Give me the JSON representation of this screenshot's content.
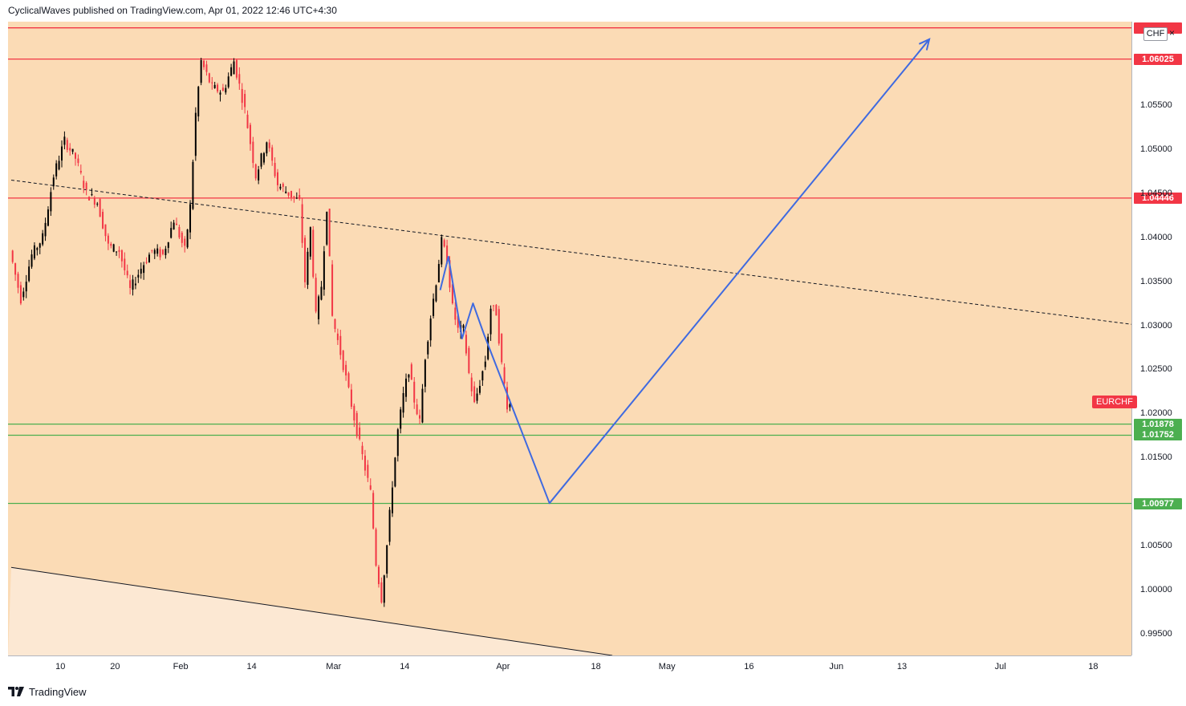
{
  "header": {
    "published_line": "CyclicalWaves published on TradingView.com, Apr 01, 2022 12:46 UTC+4:30"
  },
  "footer": {
    "brand": "TradingView"
  },
  "price_axis": {
    "currency_badge": "CHF",
    "close_symbol": "×",
    "symbol_label": "EURCHF"
  },
  "colors": {
    "background": "#fbdbb5",
    "resistance": "#f23645",
    "support": "#4caf50",
    "projection": "#3f6ae0",
    "candle_up": "#000000",
    "candle_down": "#f23645"
  },
  "chart_data": {
    "type": "candlestick",
    "symbol": "EURCHF",
    "ylim": [
      0.9925,
      1.0645
    ],
    "y_ticks": [
      "0.99500",
      "1.00000",
      "1.00500",
      "1.01500",
      "1.02000",
      "1.02500",
      "1.03000",
      "1.03500",
      "1.04000",
      "1.04500",
      "1.05000",
      "1.05500"
    ],
    "x_ticks": [
      {
        "label": "10",
        "day": 9
      },
      {
        "label": "20",
        "day": 19
      },
      {
        "label": "Feb",
        "day": 31
      },
      {
        "label": "14",
        "day": 44
      },
      {
        "label": "Mar",
        "day": 59
      },
      {
        "label": "14",
        "day": 72
      },
      {
        "label": "Apr",
        "day": 90
      },
      {
        "label": "18",
        "day": 107
      },
      {
        "label": "May",
        "day": 120
      },
      {
        "label": "16",
        "day": 135
      },
      {
        "label": "Jun",
        "day": 151
      },
      {
        "label": "13",
        "day": 163
      },
      {
        "label": "Jul",
        "day": 181
      },
      {
        "label": "18",
        "day": 198
      }
    ],
    "horizontal_levels": [
      {
        "value": 1.0638,
        "kind": "resistance",
        "label": ""
      },
      {
        "value": 1.06025,
        "kind": "resistance",
        "label": "1.06025"
      },
      {
        "value": 1.04446,
        "kind": "resistance",
        "label": "1.04446"
      },
      {
        "value": 1.01878,
        "kind": "support",
        "label": "1.01878"
      },
      {
        "value": 1.01752,
        "kind": "support",
        "label": "1.01752"
      },
      {
        "value": 1.00977,
        "kind": "support",
        "label": "1.00977"
      }
    ],
    "price_path": [
      {
        "day": 0,
        "price": 1.0385
      },
      {
        "day": 2,
        "price": 1.033
      },
      {
        "day": 4,
        "price": 1.038
      },
      {
        "day": 6,
        "price": 1.04
      },
      {
        "day": 8,
        "price": 1.047
      },
      {
        "day": 10,
        "price": 1.051
      },
      {
        "day": 12,
        "price": 1.049
      },
      {
        "day": 14,
        "price": 1.045
      },
      {
        "day": 16,
        "price": 1.044
      },
      {
        "day": 18,
        "price": 1.039
      },
      {
        "day": 20,
        "price": 1.0385
      },
      {
        "day": 22,
        "price": 1.034
      },
      {
        "day": 24,
        "price": 1.0365
      },
      {
        "day": 26,
        "price": 1.0385
      },
      {
        "day": 28,
        "price": 1.038
      },
      {
        "day": 30,
        "price": 1.042
      },
      {
        "day": 32,
        "price": 1.0385
      },
      {
        "day": 33,
        "price": 1.0435
      },
      {
        "day": 34,
        "price": 1.054
      },
      {
        "day": 35,
        "price": 1.06
      },
      {
        "day": 37,
        "price": 1.057
      },
      {
        "day": 39,
        "price": 1.0565
      },
      {
        "day": 41,
        "price": 1.06
      },
      {
        "day": 43,
        "price": 1.0545
      },
      {
        "day": 45,
        "price": 1.047
      },
      {
        "day": 47,
        "price": 1.051
      },
      {
        "day": 49,
        "price": 1.046
      },
      {
        "day": 51,
        "price": 1.045
      },
      {
        "day": 53,
        "price": 1.044
      },
      {
        "day": 54,
        "price": 1.035
      },
      {
        "day": 55,
        "price": 1.041
      },
      {
        "day": 56,
        "price": 1.031
      },
      {
        "day": 57,
        "price": 1.0345
      },
      {
        "day": 58,
        "price": 1.0435
      },
      {
        "day": 59,
        "price": 1.031
      },
      {
        "day": 61,
        "price": 1.0255
      },
      {
        "day": 63,
        "price": 1.0195
      },
      {
        "day": 64,
        "price": 1.0165
      },
      {
        "day": 66,
        "price": 1.011
      },
      {
        "day": 67,
        "price": 1.003
      },
      {
        "day": 68,
        "price": 0.999
      },
      {
        "day": 69,
        "price": 1.005
      },
      {
        "day": 70,
        "price": 1.012
      },
      {
        "day": 71,
        "price": 1.018
      },
      {
        "day": 72,
        "price": 1.022
      },
      {
        "day": 73,
        "price": 1.025
      },
      {
        "day": 74,
        "price": 1.0215
      },
      {
        "day": 75,
        "price": 1.019
      },
      {
        "day": 76,
        "price": 1.0265
      },
      {
        "day": 77,
        "price": 1.031
      },
      {
        "day": 78,
        "price": 1.035
      },
      {
        "day": 79,
        "price": 1.0395
      },
      {
        "day": 80,
        "price": 1.0375
      },
      {
        "day": 81,
        "price": 1.032
      },
      {
        "day": 82,
        "price": 1.0295
      },
      {
        "day": 83,
        "price": 1.0295
      },
      {
        "day": 84,
        "price": 1.0245
      },
      {
        "day": 85,
        "price": 1.021
      },
      {
        "day": 86,
        "price": 1.0235
      },
      {
        "day": 87,
        "price": 1.026
      },
      {
        "day": 88,
        "price": 1.032
      },
      {
        "day": 89,
        "price": 1.0315
      },
      {
        "day": 90,
        "price": 1.0255
      },
      {
        "day": 91,
        "price": 1.021
      }
    ],
    "projection_path": [
      {
        "day": 78.5,
        "price": 1.034
      },
      {
        "day": 80,
        "price": 1.0378
      },
      {
        "day": 82.5,
        "price": 1.0285
      },
      {
        "day": 84.5,
        "price": 1.0325
      },
      {
        "day": 86.5,
        "price": 1.029
      },
      {
        "day": 98.5,
        "price": 1.0098
      },
      {
        "day": 168,
        "price": 1.0625
      }
    ],
    "trendlines": [
      {
        "style": "dashed",
        "from": {
          "day": 0,
          "price": 1.0465
        },
        "to": {
          "day": 209,
          "price": 1.0298
        }
      },
      {
        "style": "solid",
        "from": {
          "day": 0,
          "price": 1.0025
        },
        "to": {
          "day": 110,
          "price": 0.9925
        }
      }
    ]
  }
}
